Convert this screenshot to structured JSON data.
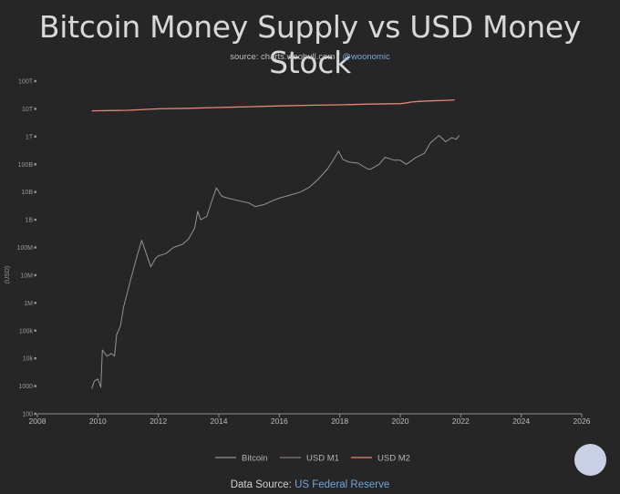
{
  "title": "Bitcoin Money Supply vs USD Money Stock",
  "subtitle": {
    "prefix": "source: charts.woobull.com / ",
    "handle": "@woonomic"
  },
  "footer": {
    "prefix": "Data Source: ",
    "source": "US Federal Reserve"
  },
  "chart_data": {
    "type": "line",
    "title": "Bitcoin Money Supply vs USD Money Stock",
    "ylabel": "(USD)",
    "xlabel": "",
    "y_scale": "log",
    "xlim": [
      2008,
      2026
    ],
    "ylim_log10": [
      2,
      14
    ],
    "x_ticks": [
      "2008",
      "2010",
      "2012",
      "2014",
      "2016",
      "2018",
      "2020",
      "2022",
      "2024",
      "2026"
    ],
    "y_ticks": [
      "100",
      "1000",
      "10k",
      "100k",
      "1M",
      "10M",
      "100M",
      "1B",
      "10B",
      "100B",
      "1T",
      "10T",
      "100T"
    ],
    "legend_position": "bottom-center",
    "series": [
      {
        "name": "Bitcoin",
        "color": "#9a9090",
        "x": [
          2009.8,
          2009.88,
          2010.0,
          2010.1,
          2010.15,
          2010.3,
          2010.45,
          2010.55,
          2010.62,
          2010.75,
          2010.85,
          2011.0,
          2011.1,
          2011.3,
          2011.45,
          2011.6,
          2011.75,
          2011.9,
          2012.0,
          2012.25,
          2012.5,
          2012.8,
          2013.0,
          2013.2,
          2013.3,
          2013.4,
          2013.6,
          2013.8,
          2013.92,
          2014.1,
          2014.3,
          2014.6,
          2015.0,
          2015.2,
          2015.5,
          2015.8,
          2016.0,
          2016.4,
          2016.7,
          2017.0,
          2017.3,
          2017.6,
          2017.8,
          2017.96,
          2018.1,
          2018.3,
          2018.6,
          2018.9,
          2019.0,
          2019.3,
          2019.5,
          2019.8,
          2020.0,
          2020.2,
          2020.5,
          2020.8,
          2021.0,
          2021.28,
          2021.5,
          2021.7,
          2021.85,
          2021.95
        ],
        "y": [
          800,
          1500,
          1800,
          900,
          20000,
          12000,
          15000,
          12000,
          70000,
          150000,
          700000,
          3000000,
          8000000,
          50000000,
          180000000,
          60000000,
          20000000,
          40000000,
          50000000,
          60000000,
          100000000,
          130000000,
          200000000,
          500000000,
          2000000000,
          1000000000,
          1300000000,
          6000000000,
          14000000000,
          7000000000,
          6000000000,
          5000000000,
          4000000000,
          3000000000,
          3500000000,
          5000000000,
          6000000000,
          8000000000,
          10000000000,
          15000000000,
          30000000000,
          70000000000,
          150000000000,
          300000000000,
          150000000000,
          120000000000,
          110000000000,
          70000000000,
          65000000000,
          100000000000,
          180000000000,
          140000000000,
          140000000000,
          100000000000,
          170000000000,
          250000000000,
          600000000000,
          1100000000000,
          650000000000,
          900000000000,
          800000000000,
          1100000000000
        ]
      },
      {
        "name": "USD M1",
        "color": "#8a7a7a",
        "x": [],
        "y": []
      },
      {
        "name": "USD M2",
        "color": "#e2877a",
        "x": [
          2009.8,
          2011.0,
          2012.0,
          2013.0,
          2014.0,
          2015.0,
          2016.0,
          2017.0,
          2018.0,
          2019.0,
          2020.0,
          2020.15,
          2020.35,
          2020.6,
          2021.0,
          2021.5,
          2021.8
        ],
        "y": [
          8500000000000,
          8900000000000,
          10000000000000,
          10500000000000,
          11200000000000,
          11900000000000,
          12800000000000,
          13500000000000,
          14000000000000,
          14800000000000,
          15400000000000,
          16000000000000,
          17500000000000,
          18500000000000,
          19300000000000,
          20300000000000,
          21000000000000
        ]
      }
    ]
  }
}
